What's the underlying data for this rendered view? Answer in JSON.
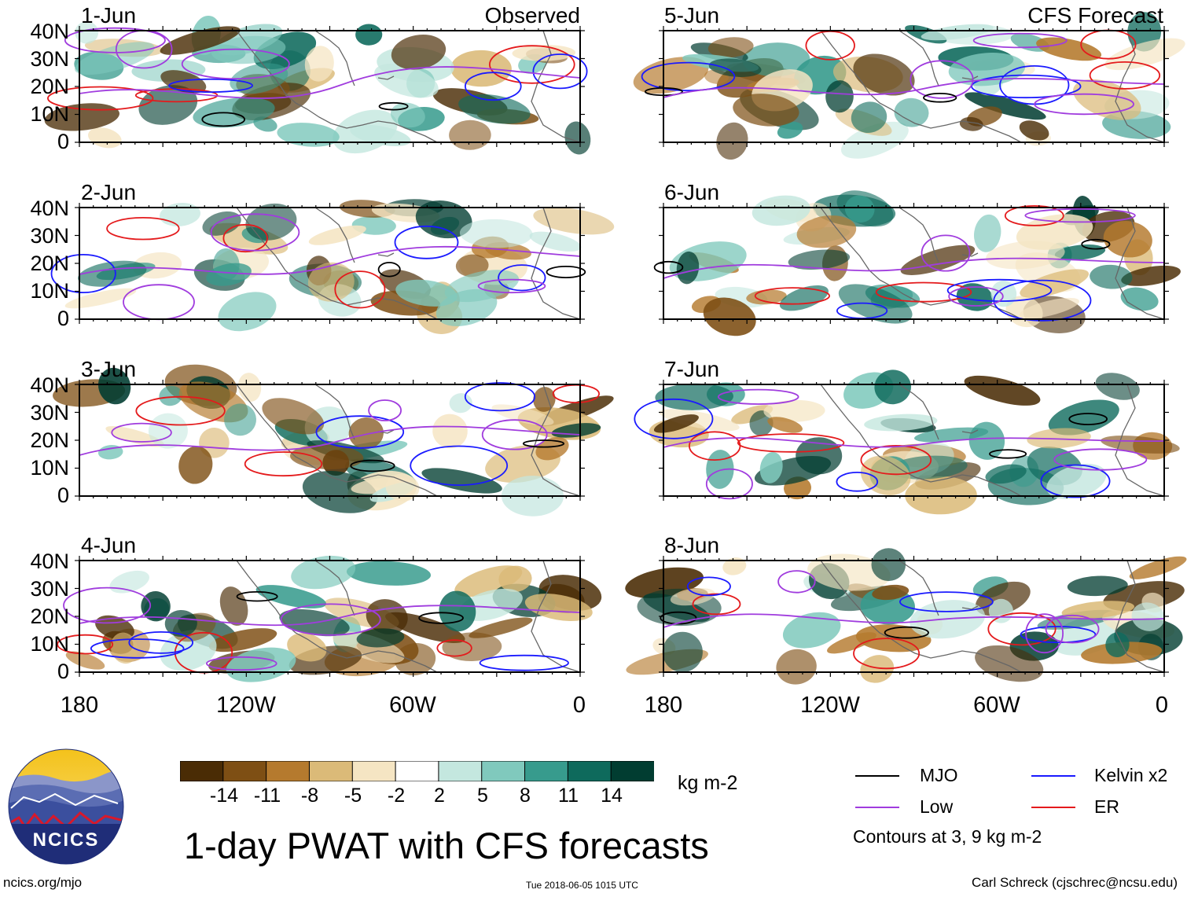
{
  "panels": [
    {
      "date": "1-Jun",
      "corner": "Observed"
    },
    {
      "date": "2-Jun",
      "corner": ""
    },
    {
      "date": "3-Jun",
      "corner": ""
    },
    {
      "date": "4-Jun",
      "corner": ""
    },
    {
      "date": "5-Jun",
      "corner": "CFS Forecast"
    },
    {
      "date": "6-Jun",
      "corner": ""
    },
    {
      "date": "7-Jun",
      "corner": ""
    },
    {
      "date": "8-Jun",
      "corner": ""
    }
  ],
  "lat_labels": [
    "40N",
    "30N",
    "20N",
    "10N",
    "0"
  ],
  "lon_labels": [
    "180",
    "120W",
    "60W",
    "0"
  ],
  "colorbar": {
    "colors": [
      "#4a2c05",
      "#7e4f14",
      "#b57a2e",
      "#dbba78",
      "#f5e5c3",
      "#ffffff",
      "#c4e7df",
      "#80c9bd",
      "#379b8d",
      "#0e6a5c",
      "#013d31"
    ],
    "ticks": [
      "-14",
      "-11",
      "-8",
      "-5",
      "-2",
      "2",
      "5",
      "8",
      "11",
      "14"
    ],
    "units": "kg m-2"
  },
  "title": "1-day PWAT with CFS forecasts",
  "legend": {
    "items": [
      {
        "label": "MJO",
        "color": "#000000"
      },
      {
        "label": "Kelvin x2",
        "color": "#1a1aff"
      },
      {
        "label": "Low",
        "color": "#a03cde"
      },
      {
        "label": "ER",
        "color": "#e41a1c"
      }
    ],
    "note": "Contours at 3, 9 kg m-2"
  },
  "footer": {
    "logo_text": "NCICS",
    "site": "ncics.org/mjo",
    "timestamp": "Tue 2018-06-05 1015 UTC",
    "author": "Carl Schreck (cjschrec@ncsu.edu)"
  }
}
